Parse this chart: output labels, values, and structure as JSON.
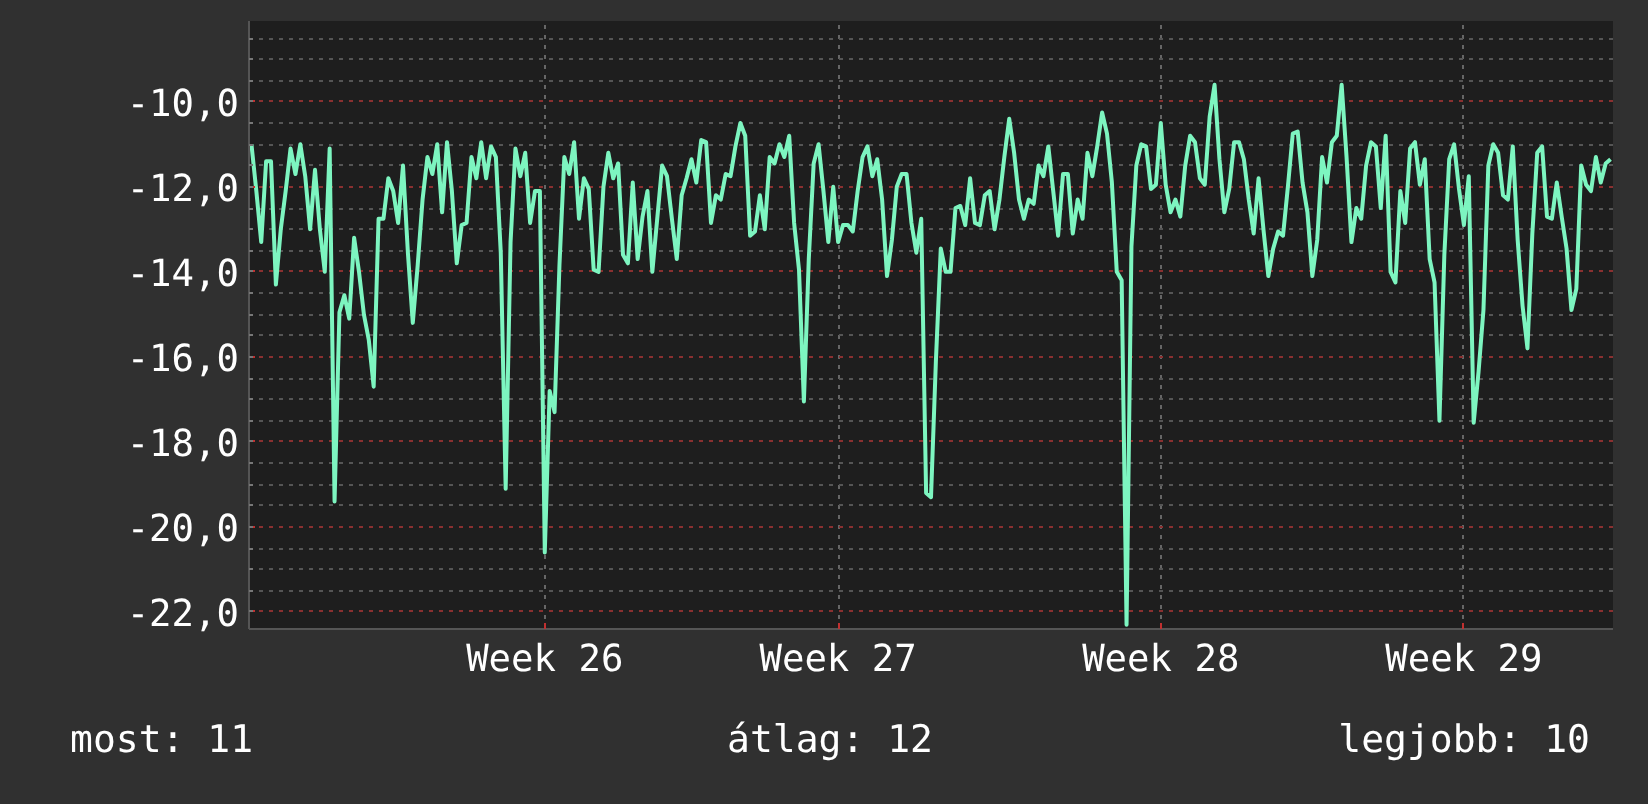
{
  "chart_data": {
    "type": "line",
    "categories": [
      null,
      null,
      null,
      null,
      null,
      null,
      null,
      null,
      null,
      null,
      null,
      null,
      null,
      null,
      null,
      null,
      null,
      null,
      null,
      null,
      null,
      null,
      null,
      null,
      null,
      null,
      null,
      null,
      null,
      null,
      null,
      null,
      null,
      null,
      null,
      null,
      null,
      null,
      null,
      null,
      null,
      null,
      null,
      null,
      null,
      null,
      null,
      null,
      null,
      null,
      null,
      null,
      null,
      null,
      null,
      null,
      null,
      null,
      null,
      null,
      "Week 26",
      null,
      null,
      null,
      null,
      null,
      null,
      null,
      null,
      null,
      null,
      null,
      null,
      null,
      null,
      null,
      null,
      null,
      null,
      null,
      null,
      null,
      null,
      null,
      null,
      null,
      null,
      null,
      null,
      null,
      null,
      null,
      null,
      null,
      null,
      null,
      null,
      null,
      null,
      null,
      null,
      null,
      null,
      null,
      null,
      null,
      null,
      null,
      null,
      null,
      null,
      null,
      null,
      null,
      null,
      null,
      null,
      null,
      null,
      null,
      "Week 27",
      null,
      null,
      null,
      null,
      null,
      null,
      null,
      null,
      null,
      null,
      null,
      null,
      null,
      null,
      null,
      null,
      null,
      null,
      null,
      null,
      null,
      null,
      null,
      null,
      null,
      null,
      null,
      null,
      null,
      null,
      null,
      null,
      null,
      null,
      null,
      null,
      null,
      null,
      null,
      null,
      null,
      null,
      null,
      null,
      null,
      null,
      null,
      null,
      null,
      null,
      null,
      null,
      null,
      null,
      null,
      null,
      null,
      null,
      null,
      null,
      null,
      null,
      null,
      null,
      null,
      "Week 28",
      null,
      null,
      null,
      null,
      null,
      null,
      null,
      null,
      null,
      null,
      null,
      null,
      null,
      null,
      null,
      null,
      null,
      null,
      null,
      null,
      null,
      null,
      null,
      null,
      null,
      null,
      null,
      null,
      null,
      null,
      null,
      null,
      null,
      null,
      null,
      null,
      null,
      null,
      null,
      null,
      null,
      null,
      null,
      null,
      null,
      null,
      null,
      null,
      null,
      null,
      null,
      null,
      null,
      null,
      null,
      null,
      null,
      null,
      null,
      null,
      null,
      "Week 29",
      null,
      null,
      null,
      null,
      null,
      null,
      null,
      null,
      null,
      null,
      null,
      null,
      null,
      null,
      null,
      null,
      null,
      null,
      null,
      null,
      null,
      null,
      null,
      null,
      null,
      null,
      null,
      null,
      null,
      null
    ],
    "series": [
      {
        "color": "#7df5c0",
        "values": [
          -11.0,
          -12.1,
          -13.3,
          -11.4,
          -11.4,
          -14.3,
          -13.0,
          -12.1,
          -11.1,
          -11.7,
          -11.0,
          -11.75,
          -13.0,
          -11.6,
          -13.0,
          -14.0,
          -11.1,
          -19.4,
          -14.95,
          -14.55,
          -15.1,
          -13.2,
          -14.0,
          -15.0,
          -15.6,
          -16.7,
          -12.75,
          -12.75,
          -11.8,
          -12.1,
          -12.85,
          -11.5,
          -13.55,
          -15.2,
          -13.85,
          -12.3,
          -11.3,
          -11.7,
          -11.0,
          -12.6,
          -10.95,
          -12.1,
          -13.8,
          -12.9,
          -12.85,
          -11.3,
          -11.8,
          -10.95,
          -11.8,
          -11.05,
          -11.3,
          -13.55,
          -19.1,
          -13.3,
          -11.1,
          -11.75,
          -11.2,
          -12.85,
          -12.1,
          -12.1,
          -20.6,
          -16.8,
          -17.3,
          -13.85,
          -11.3,
          -11.7,
          -10.95,
          -12.75,
          -11.8,
          -12.05,
          -13.95,
          -14.0,
          -12.0,
          -11.2,
          -11.8,
          -11.45,
          -13.6,
          -13.8,
          -11.9,
          -13.7,
          -12.7,
          -12.1,
          -14.0,
          -12.75,
          -11.5,
          -11.75,
          -12.75,
          -13.7,
          -12.2,
          -11.8,
          -11.35,
          -11.9,
          -10.9,
          -10.95,
          -12.85,
          -12.2,
          -12.3,
          -11.7,
          -11.75,
          -11.05,
          -10.5,
          -10.8,
          -13.15,
          -13.05,
          -12.2,
          -13.0,
          -11.3,
          -11.45,
          -11.0,
          -11.3,
          -10.8,
          -12.85,
          -13.95,
          -17.05,
          -13.7,
          -11.45,
          -11.0,
          -12.1,
          -13.3,
          -12.0,
          -13.3,
          -12.9,
          -12.9,
          -13.05,
          -12.1,
          -11.3,
          -11.05,
          -11.75,
          -11.35,
          -12.3,
          -14.1,
          -13.25,
          -12.0,
          -11.7,
          -11.7,
          -12.85,
          -13.55,
          -12.75,
          -19.2,
          -19.3,
          -16.1,
          -13.45,
          -14.0,
          -14.0,
          -12.5,
          -12.45,
          -12.9,
          -11.8,
          -12.85,
          -12.9,
          -12.2,
          -12.1,
          -13.0,
          -12.3,
          -11.3,
          -10.4,
          -11.2,
          -12.3,
          -12.75,
          -12.3,
          -12.4,
          -11.5,
          -11.75,
          -11.05,
          -12.1,
          -13.15,
          -11.7,
          -11.7,
          -13.1,
          -12.3,
          -12.75,
          -11.2,
          -11.75,
          -11.05,
          -10.25,
          -10.75,
          -11.9,
          -14.0,
          -14.2,
          -22.3,
          -13.4,
          -11.5,
          -11.0,
          -11.05,
          -12.05,
          -11.95,
          -10.5,
          -11.95,
          -12.6,
          -12.3,
          -12.7,
          -11.5,
          -10.8,
          -10.95,
          -11.8,
          -11.95,
          -10.35,
          -9.6,
          -11.35,
          -12.6,
          -12.05,
          -10.95,
          -10.95,
          -11.35,
          -12.3,
          -13.1,
          -11.8,
          -13.0,
          -14.1,
          -13.45,
          -13.05,
          -13.15,
          -12.0,
          -10.75,
          -10.7,
          -11.9,
          -12.6,
          -14.1,
          -13.25,
          -11.3,
          -11.9,
          -10.95,
          -10.8,
          -9.6,
          -11.3,
          -13.3,
          -12.5,
          -12.75,
          -11.5,
          -10.95,
          -11.05,
          -12.5,
          -10.8,
          -14.0,
          -14.25,
          -12.1,
          -12.85,
          -11.1,
          -10.95,
          -11.95,
          -11.35,
          -13.7,
          -14.25,
          -17.5,
          -13.6,
          -11.35,
          -11.0,
          -12.05,
          -12.9,
          -11.75,
          -17.55,
          -16.35,
          -14.9,
          -11.5,
          -11.0,
          -11.2,
          -12.2,
          -12.3,
          -11.05,
          -13.25,
          -14.8,
          -15.8,
          -13.1,
          -11.2,
          -11.05,
          -12.7,
          -12.75,
          -11.9,
          -12.7,
          -13.45,
          -14.9,
          -14.4,
          -11.5,
          -11.95,
          -12.1,
          -11.3,
          -11.9,
          -11.45,
          -11.35
        ]
      }
    ],
    "ylim": [
      -22.4,
      -8.1
    ],
    "yticks": [
      {
        "value": -22,
        "label": "-22,0"
      },
      {
        "value": -20,
        "label": "-20,0"
      },
      {
        "value": -18,
        "label": "-18,0"
      },
      {
        "value": -16,
        "label": "-16,0"
      },
      {
        "value": -14,
        "label": "-14,0"
      },
      {
        "value": -12,
        "label": "-12,0"
      },
      {
        "value": -10,
        "label": "-10,0"
      }
    ],
    "grid": true,
    "line_style": "solid",
    "annotations": [
      "most: 11",
      "átlag: 12",
      "legjobb: 10"
    ]
  }
}
